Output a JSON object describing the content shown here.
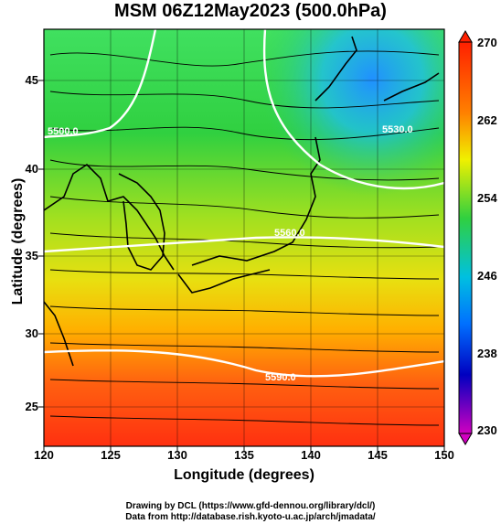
{
  "title": "MSM 06Z12May2023 (500.0hPa)",
  "xaxis": {
    "label": "Longitude (degrees)",
    "ticks": [
      "120",
      "125",
      "130",
      "135",
      "140",
      "145",
      "150"
    ]
  },
  "yaxis": {
    "label": "Latitude  (degrees)",
    "ticks": [
      "45",
      "40",
      "35",
      "30",
      "25"
    ]
  },
  "colorbar": {
    "ticks": [
      "270",
      "262",
      "254",
      "246",
      "238",
      "230"
    ],
    "min": 230,
    "max": 270
  },
  "contours": {
    "labels": [
      "5500.0",
      "5530.0",
      "5560.0",
      "5590.0"
    ]
  },
  "credits": {
    "line1": "Drawing by DCL (https://www.gfd-dennou.org/library/dcl/)",
    "line2": "Data from http://database.rish.kyoto-u.ac.jp/arch/jmadata/"
  },
  "colors": {
    "warm": "#ff3010",
    "cool": "#20a0ff",
    "contour": "#ffffff",
    "vector": "#000000"
  }
}
